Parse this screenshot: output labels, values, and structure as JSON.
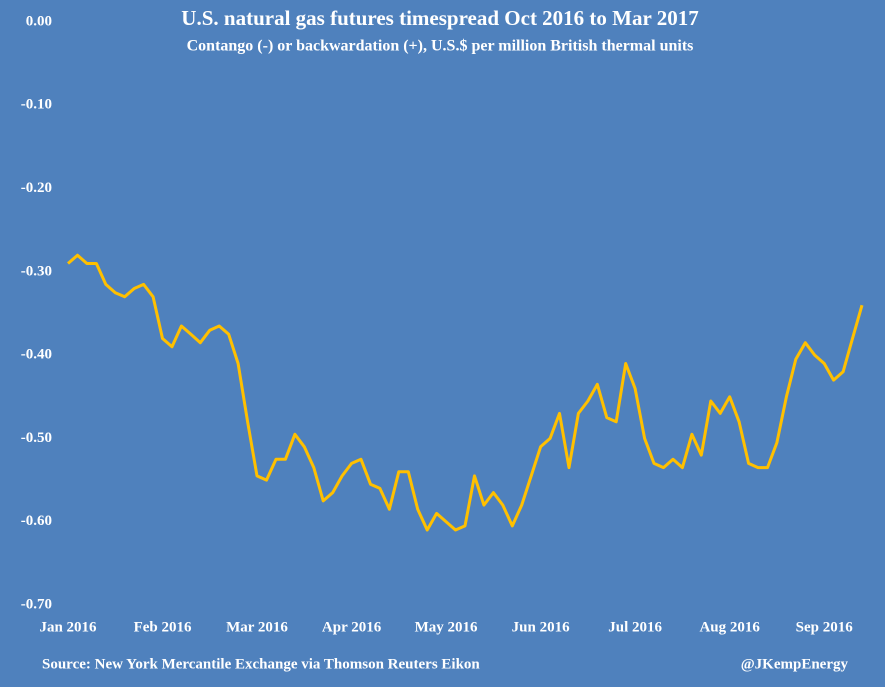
{
  "chart_data": {
    "type": "line",
    "title": "U.S. natural gas futures timespread Oct 2016 to Mar 2017",
    "subtitle": "Contango (-) or backwardation (+), U.S.$ per million British thermal units",
    "source": "Source: New York Mercantile Exchange via Thomson Reuters Eikon",
    "credit": "@JKempEnergy",
    "background": "#4f81bd",
    "ylim": [
      -0.7,
      0
    ],
    "yticks": [
      {
        "value": 0,
        "label": "0.00"
      },
      {
        "value": -0.1,
        "label": "-0.10"
      },
      {
        "value": -0.2,
        "label": "-0.20"
      },
      {
        "value": -0.3,
        "label": "-0.30"
      },
      {
        "value": -0.4,
        "label": "-0.40"
      },
      {
        "value": -0.5,
        "label": "-0.50"
      },
      {
        "value": -0.6,
        "label": "-0.60"
      },
      {
        "value": -0.7,
        "label": "-0.70"
      }
    ],
    "grid": false,
    "categories": [
      "Jan 2016",
      null,
      null,
      null,
      null,
      null,
      null,
      null,
      null,
      null,
      "Feb 2016",
      null,
      null,
      null,
      null,
      null,
      null,
      null,
      null,
      null,
      "Mar 2016",
      null,
      null,
      null,
      null,
      null,
      null,
      null,
      null,
      null,
      "Apr 2016",
      null,
      null,
      null,
      null,
      null,
      null,
      null,
      null,
      null,
      "May 2016",
      null,
      null,
      null,
      null,
      null,
      null,
      null,
      null,
      null,
      "Jun 2016",
      null,
      null,
      null,
      null,
      null,
      null,
      null,
      null,
      null,
      "Jul 2016",
      null,
      null,
      null,
      null,
      null,
      null,
      null,
      null,
      null,
      "Aug 2016",
      null,
      null,
      null,
      null,
      null,
      null,
      null,
      null,
      null,
      "Sep 2016",
      null,
      null,
      null,
      null
    ],
    "series": [
      {
        "name": "Timespread",
        "color": "#ffc000",
        "values": [
          -0.29,
          -0.28,
          -0.29,
          -0.29,
          -0.315,
          -0.325,
          -0.33,
          -0.32,
          -0.315,
          -0.33,
          -0.38,
          -0.39,
          -0.365,
          -0.375,
          -0.385,
          -0.37,
          -0.365,
          -0.375,
          -0.41,
          -0.48,
          -0.545,
          -0.55,
          -0.525,
          -0.525,
          -0.495,
          -0.51,
          -0.535,
          -0.575,
          -0.565,
          -0.545,
          -0.53,
          -0.525,
          -0.555,
          -0.56,
          -0.585,
          -0.54,
          -0.54,
          -0.585,
          -0.61,
          -0.59,
          -0.6,
          -0.61,
          -0.605,
          -0.545,
          -0.58,
          -0.565,
          -0.58,
          -0.605,
          -0.58,
          -0.545,
          -0.51,
          -0.5,
          -0.47,
          -0.535,
          -0.47,
          -0.455,
          -0.435,
          -0.475,
          -0.48,
          -0.41,
          -0.44,
          -0.5,
          -0.53,
          -0.535,
          -0.525,
          -0.535,
          -0.495,
          -0.52,
          -0.455,
          -0.47,
          -0.45,
          -0.48,
          -0.53,
          -0.535,
          -0.535,
          -0.505,
          -0.45,
          -0.405,
          -0.385,
          -0.4,
          -0.41,
          -0.43,
          -0.42,
          -0.38,
          -0.34
        ]
      }
    ]
  }
}
